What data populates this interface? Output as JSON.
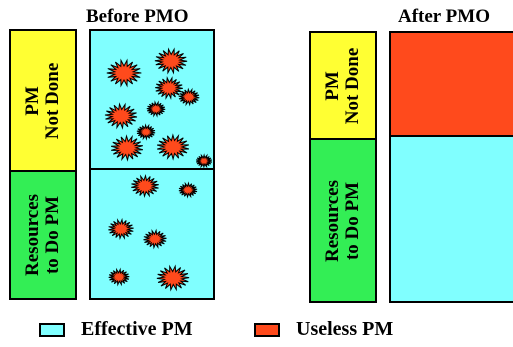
{
  "before": {
    "title": "Before PMO",
    "top_label": [
      "PM",
      "Not Done"
    ],
    "bottom_label": [
      "Resources",
      "to Do PM"
    ]
  },
  "after": {
    "title": "After PMO",
    "top_label": [
      "PM",
      "Not Done"
    ],
    "bottom_label": [
      "Resources",
      "to Do PM"
    ]
  },
  "legend": {
    "effective": "Effective PM",
    "useless": "Useless PM"
  },
  "colors": {
    "effective": "#80ffff",
    "useless": "#ff4a1c",
    "not_done": "#ffff33",
    "resources": "#33ee55",
    "outline": "#000000"
  }
}
